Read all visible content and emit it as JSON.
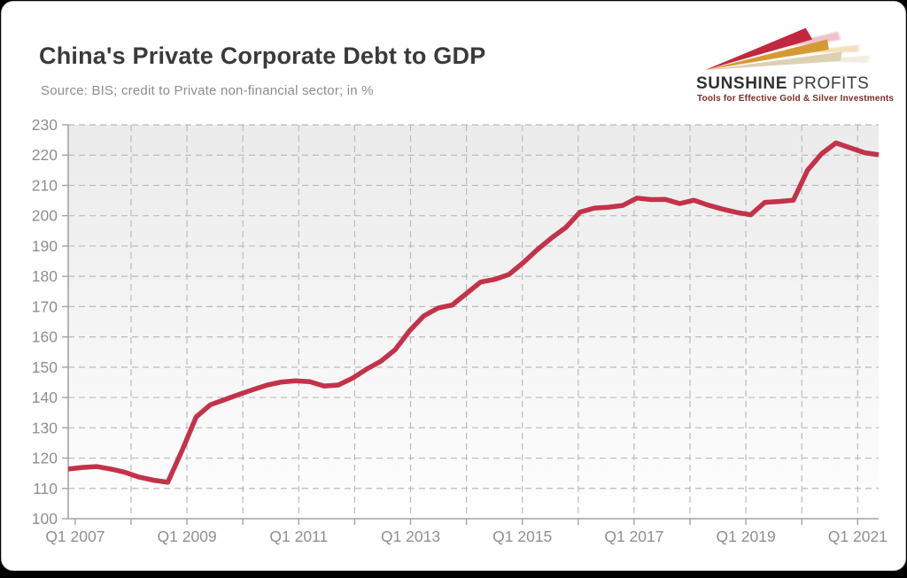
{
  "header": {
    "title": "China's Private Corporate Debt to GDP",
    "subtitle": "Source: BIS; credit to Private non-financial sector; in %"
  },
  "logo": {
    "brand_bold": "SUNSHINE",
    "brand_light": "PROFITS",
    "tagline": "Tools for Effective Gold & Silver Investments",
    "tagline_color": "#7c2d27",
    "arrow_colors": [
      "#c22740",
      "#d69a35",
      "#ddd1b2"
    ]
  },
  "chart_data": {
    "type": "line",
    "title": "China's Private Corporate Debt to GDP",
    "series_name": "Credit to private non-financial sector, % of GDP",
    "frequency": "quarterly",
    "x_start": "Q1 2007",
    "x_end": "Q2 2021",
    "x_tick_labels": [
      "Q1 2007",
      "Q1 2009",
      "Q1 2011",
      "Q1 2013",
      "Q1 2015",
      "Q1 2017",
      "Q1 2019",
      "Q1 2021"
    ],
    "x_tick_indices": [
      0,
      8,
      16,
      24,
      32,
      40,
      48,
      56
    ],
    "values": [
      116.4,
      116.9,
      117.2,
      116.4,
      115.3,
      113.7,
      112.7,
      112.0,
      122.4,
      133.6,
      137.6,
      139.3,
      141.0,
      142.6,
      144.1,
      145.1,
      145.5,
      145.2,
      143.8,
      144.1,
      146.4,
      149.4,
      152.0,
      155.8,
      162.0,
      166.9,
      169.5,
      170.5,
      174.3,
      178.1,
      179.0,
      180.6,
      184.5,
      188.8,
      192.7,
      196.1,
      201.2,
      202.5,
      202.8,
      203.4,
      205.8,
      205.3,
      205.4,
      204.0,
      205.1,
      203.5,
      202.2,
      201.1,
      200.3,
      204.4,
      204.7,
      205.1,
      215.0,
      220.5,
      224.0,
      222.4,
      220.8,
      220.1
    ],
    "ylim": [
      100,
      230
    ],
    "y_tick_step": 10,
    "grid": "dashed; horizontal every 10 units, vertical every year",
    "legend_position": "none",
    "line_color": "#c2334a",
    "axis_color": "#a3a3a3",
    "grid_color": "#bababa",
    "tick_label_color": "#8f8f8f",
    "plot_bg_top": "#ebebeb",
    "plot_bg_bottom": "#ffffff"
  }
}
